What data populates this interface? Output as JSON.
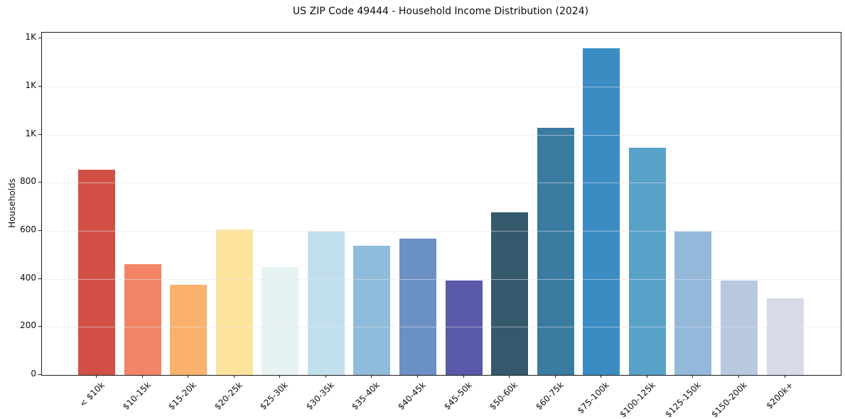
{
  "chart_data": {
    "type": "bar",
    "title": "US ZIP Code 49444 - Household Income Distribution (2024)",
    "xlabel": "",
    "ylabel": "Households",
    "categories": [
      "< $10k",
      "$10-15k",
      "$15-20k",
      "$20-25k",
      "$25-30k",
      "$30-35k",
      "$35-40k",
      "$40-45k",
      "$45-50k",
      "$50-60k",
      "$60-75k",
      "$75-100k",
      "$100-125k",
      "$125-150k",
      "$150-200k",
      "$200k+"
    ],
    "values": [
      855,
      462,
      375,
      606,
      450,
      597,
      538,
      568,
      393,
      678,
      1027,
      1360,
      944,
      596,
      393,
      319
    ],
    "bar_colors": [
      "#d24f46",
      "#f08465",
      "#f9b16c",
      "#fde49d",
      "#e7f2f2",
      "#c1e0ec",
      "#8fbcda",
      "#6b90c4",
      "#5a59aa",
      "#35596c",
      "#3a7ba0",
      "#3a8cc3",
      "#58a1c9",
      "#93b8da",
      "#b8c8e1",
      "#d9dae8"
    ],
    "ylim": [
      0,
      1424
    ],
    "yticks": [
      0,
      200,
      400,
      600,
      800,
      1000,
      1200,
      1400
    ],
    "ytick_labels": [
      "0",
      "200",
      "400",
      "600",
      "800",
      "1K",
      "1K",
      "1K"
    ],
    "grid": "horizontal",
    "legend": "none",
    "colors": {
      "background": "#ffffff",
      "spine": "#1c1c1c",
      "gridline": "#e4e4ec",
      "text": "#0d0d0d"
    }
  }
}
